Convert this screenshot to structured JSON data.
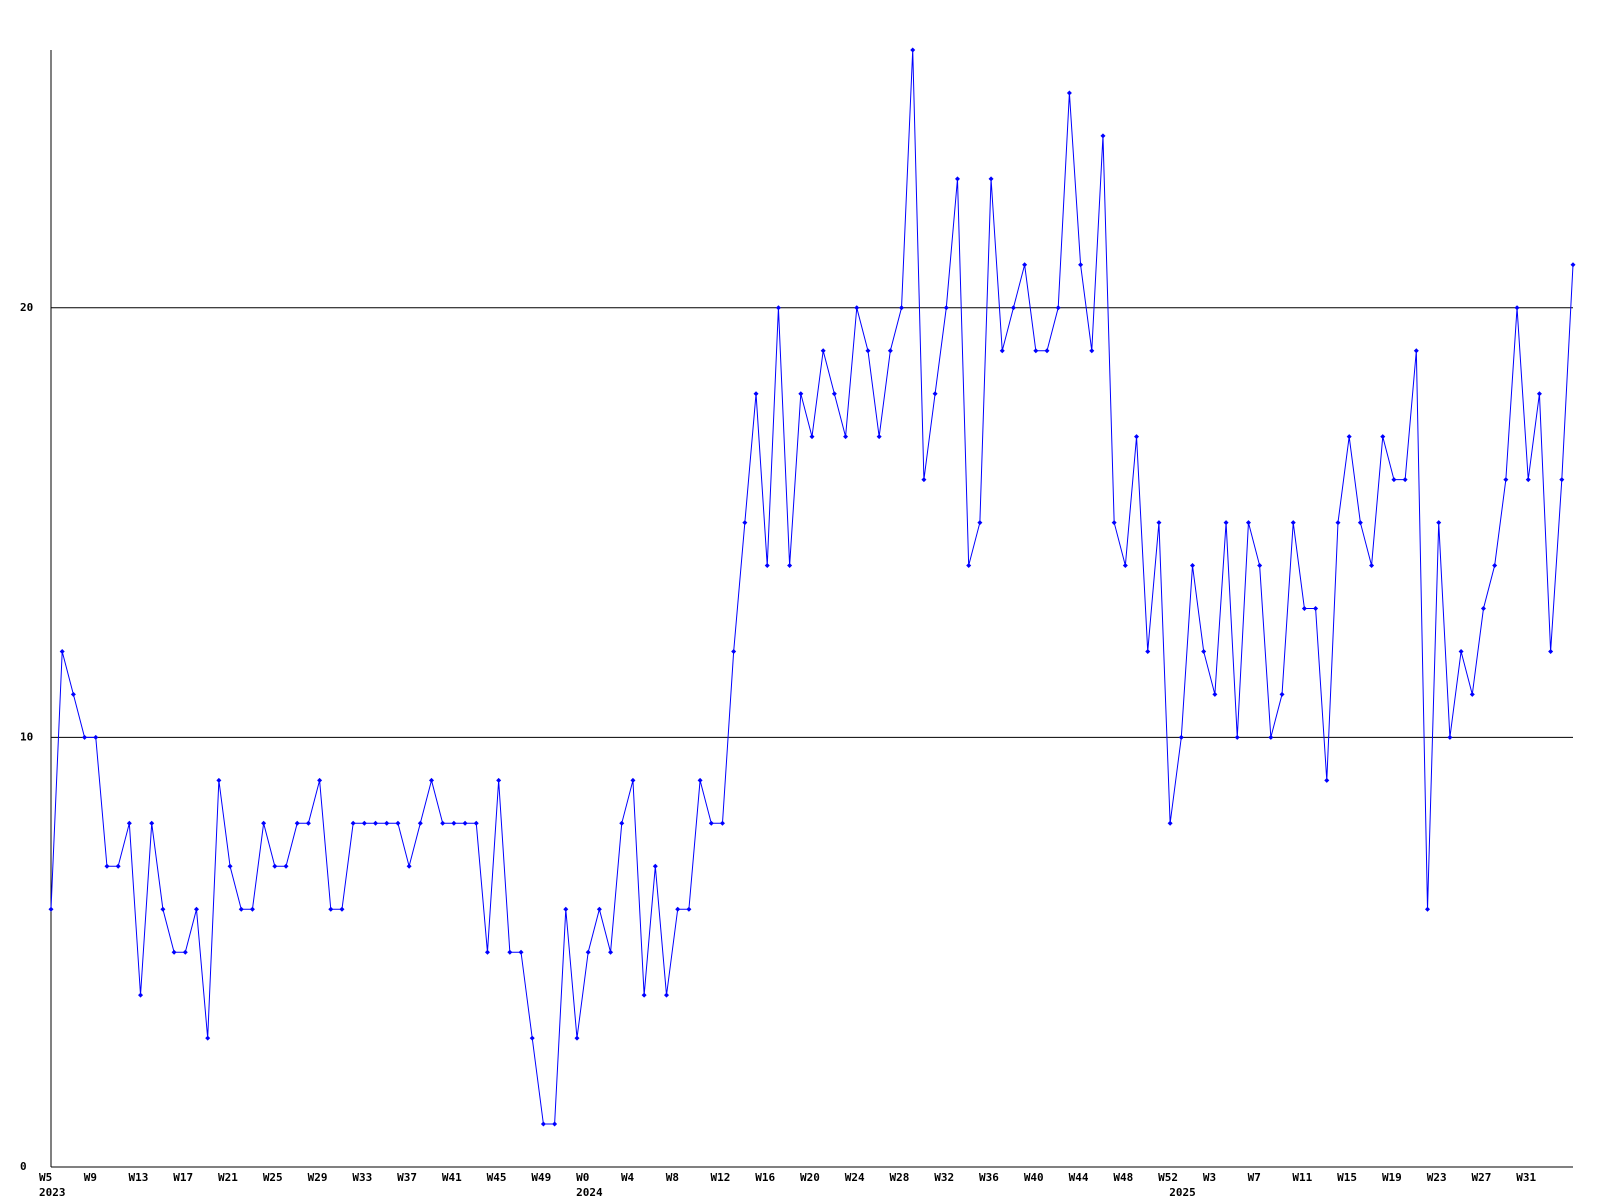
{
  "chart_data": {
    "type": "line",
    "color": "#0000ff",
    "grid": true,
    "ylim": [
      0,
      26
    ],
    "yticks": [
      0,
      10,
      20
    ],
    "categories": [
      "W5",
      null,
      null,
      null,
      "W9",
      null,
      null,
      null,
      "W13",
      null,
      null,
      null,
      "W17",
      null,
      null,
      null,
      "W21",
      null,
      null,
      null,
      "W25",
      null,
      null,
      null,
      "W29",
      null,
      null,
      null,
      "W33",
      null,
      null,
      null,
      "W37",
      null,
      null,
      null,
      "W41",
      null,
      null,
      null,
      "W45",
      null,
      null,
      null,
      "W49",
      null,
      null,
      null,
      "W0",
      null,
      null,
      null,
      "W4",
      null,
      null,
      null,
      "W8",
      null,
      null,
      null,
      "W12",
      null,
      null,
      null,
      "W16",
      null,
      null,
      null,
      "W20",
      null,
      null,
      null,
      "W24",
      null,
      null,
      null,
      "W28",
      null,
      null,
      null,
      "W32",
      null,
      null,
      null,
      "W36",
      null,
      null,
      null,
      "W40",
      null,
      null,
      null,
      "W44",
      null,
      null,
      null,
      "W48",
      null,
      null,
      null,
      "W52",
      null,
      null,
      null,
      "W3",
      null,
      null,
      null,
      "W7",
      null,
      null,
      null,
      "W11",
      null,
      null,
      null,
      "W15",
      null,
      null,
      null,
      "W19",
      null,
      null,
      null,
      "W23",
      null,
      null,
      null,
      "W27",
      null,
      null,
      null,
      "W31",
      null,
      null,
      null,
      null
    ],
    "year_labels": [
      "2023",
      null,
      null,
      null,
      null,
      null,
      null,
      null,
      null,
      null,
      null,
      null,
      null,
      null,
      null,
      null,
      null,
      null,
      null,
      null,
      null,
      null,
      null,
      null,
      null,
      null,
      null,
      null,
      null,
      null,
      null,
      null,
      null,
      null,
      null,
      null,
      null,
      null,
      null,
      null,
      null,
      null,
      null,
      null,
      null,
      null,
      null,
      null,
      "2024",
      null,
      null,
      null,
      null,
      null,
      null,
      null,
      null,
      null,
      null,
      null,
      null,
      null,
      null,
      null,
      null,
      null,
      null,
      null,
      null,
      null,
      null,
      null,
      null,
      null,
      null,
      null,
      null,
      null,
      null,
      null,
      null,
      null,
      null,
      null,
      null,
      null,
      null,
      null,
      null,
      null,
      null,
      null,
      null,
      null,
      null,
      null,
      null,
      null,
      null,
      null,
      null,
      "2025",
      null,
      null,
      null,
      null,
      null,
      null,
      null,
      null,
      null,
      null,
      null,
      null,
      null,
      null,
      null,
      null,
      null,
      null,
      null,
      null,
      null,
      null,
      null,
      null,
      null,
      null,
      null,
      null,
      null,
      null,
      null,
      null,
      null,
      null,
      null
    ],
    "values": [
      6,
      12,
      11,
      10,
      10,
      7,
      7,
      8,
      4,
      8,
      6,
      5,
      5,
      6,
      3,
      9,
      7,
      6,
      6,
      8,
      7,
      7,
      8,
      8,
      9,
      6,
      6,
      8,
      8,
      8,
      8,
      8,
      7,
      8,
      9,
      8,
      8,
      8,
      8,
      5,
      9,
      5,
      5,
      3,
      1,
      1,
      6,
      3,
      5,
      6,
      5,
      8,
      9,
      4,
      7,
      4,
      6,
      6,
      9,
      8,
      8,
      12,
      15,
      18,
      14,
      20,
      14,
      18,
      17,
      19,
      18,
      17,
      20,
      19,
      17,
      19,
      20,
      26,
      16,
      18,
      20,
      23,
      14,
      15,
      23,
      19,
      20,
      21,
      19,
      19,
      20,
      25,
      21,
      19,
      24,
      15,
      14,
      17,
      12,
      15,
      8,
      10,
      14,
      12,
      11,
      15,
      10,
      15,
      14,
      10,
      11,
      15,
      13,
      13,
      9,
      15,
      17,
      15,
      14,
      17,
      16,
      16,
      19,
      6,
      15,
      10,
      12,
      11,
      13,
      14,
      16,
      20,
      16,
      18,
      12,
      16,
      21
    ]
  }
}
